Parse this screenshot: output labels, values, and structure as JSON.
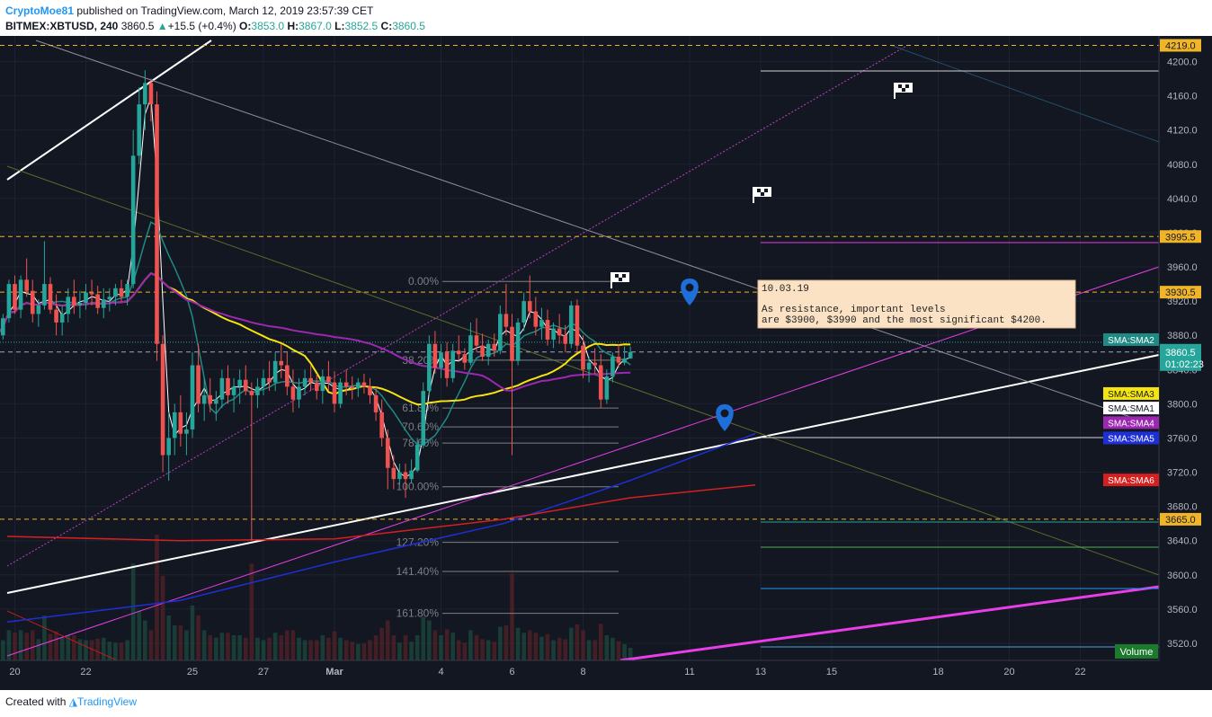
{
  "header": {
    "author": "CryptoMoe81",
    "published": "published on TradingView.com, March 12, 2019 23:57:39 CET",
    "symbol": "BITMEX:XBTUSD, 240",
    "last": "3860.5",
    "change": "+15.5 (+0.4%)",
    "o_label": "O:",
    "o": "3853.0",
    "h_label": "H:",
    "h": "3867.0",
    "l_label": "L:",
    "l": "3852.5",
    "c_label": "C:",
    "c": "3860.5"
  },
  "footer": {
    "created": "Created with",
    "brand": "TradingView"
  },
  "colors": {
    "background": "#131722",
    "up": "#26a69a",
    "down": "#ef5350",
    "level": "#f0b429",
    "sma1": "#ffffff",
    "sma2": "#1f8a84",
    "sma3": "#f5e50f",
    "sma4": "#9c27b0",
    "sma5": "#1e2fd6",
    "sma6": "#d61f1f",
    "pink": "#e83ee8"
  },
  "chart_data": {
    "type": "candlestick",
    "ylim": [
      3500,
      4230
    ],
    "y_ticks": [
      3520,
      3560,
      3600,
      3640,
      3680,
      3720,
      3760,
      3800,
      3840,
      3880,
      3920,
      3960,
      4000,
      4040,
      4080,
      4120,
      4160,
      4200
    ],
    "x_ticks": [
      "20",
      "22",
      "25",
      "27",
      "Mar",
      "4",
      "6",
      "8",
      "11",
      "13",
      "15",
      "18",
      "20",
      "22"
    ],
    "x_tick_days": [
      -9,
      -7,
      -4,
      -2,
      0,
      3,
      5,
      7,
      10,
      12,
      14,
      17,
      19,
      21
    ],
    "levels": [
      {
        "price": 4219.0,
        "label": "4219.0"
      },
      {
        "price": 3995.5,
        "label": "3995.5"
      },
      {
        "price": 3930.5,
        "label": "3930.5"
      },
      {
        "price": 3665.0,
        "label": "3665.0"
      }
    ],
    "last_price": {
      "price": 3860.5,
      "label": "3860.5",
      "countdown": "01:02:23"
    },
    "fib": [
      {
        "label": "0.00%",
        "price": 3943
      },
      {
        "label": "38.20%",
        "price": 3851
      },
      {
        "label": "61.80%",
        "price": 3795
      },
      {
        "label": "70.60%",
        "price": 3773
      },
      {
        "label": "78.60%",
        "price": 3754
      },
      {
        "label": "100.00%",
        "price": 3703
      },
      {
        "label": "127.20%",
        "price": 3638
      },
      {
        "label": "141.40%",
        "price": 3604
      },
      {
        "label": "161.80%",
        "price": 3555
      }
    ],
    "legend": [
      {
        "label": "SMA:SMA2",
        "price": 3875,
        "color": "#1f8a84"
      },
      {
        "label": "SMA:SMA3",
        "price": 3812,
        "color": "#f5e50f"
      },
      {
        "label": "SMA:SMA1",
        "price": 3795,
        "color": "#ffffff"
      },
      {
        "label": "SMA:SMA4",
        "price": 3778,
        "color": "#9c27b0"
      },
      {
        "label": "SMA:SMA5",
        "price": 3760,
        "color": "#1e2fd6"
      },
      {
        "label": "SMA:SMA6",
        "price": 3711,
        "color": "#d61f1f"
      }
    ],
    "volume_label": "Volume",
    "annotation": {
      "date": "10.03.19",
      "text1": "As resistance, important levels",
      "text2": "are $3900, $3990 and the most significant $4200."
    },
    "candles_4h": [
      [
        3920,
        3925,
        3870,
        3880
      ],
      [
        3880,
        3905,
        3875,
        3900
      ],
      [
        3900,
        3945,
        3895,
        3940
      ],
      [
        3940,
        3950,
        3905,
        3910
      ],
      [
        3910,
        3950,
        3900,
        3945
      ],
      [
        3945,
        3970,
        3925,
        3932
      ],
      [
        3932,
        3945,
        3895,
        3905
      ],
      [
        3905,
        3922,
        3890,
        3915
      ],
      [
        3915,
        3990,
        3910,
        3940
      ],
      [
        3940,
        3948,
        3905,
        3910
      ],
      [
        3910,
        3928,
        3880,
        3895
      ],
      [
        3895,
        3915,
        3880,
        3905
      ],
      [
        3905,
        3935,
        3895,
        3925
      ],
      [
        3925,
        3945,
        3905,
        3915
      ],
      [
        3915,
        3932,
        3900,
        3918
      ],
      [
        3918,
        3940,
        3910,
        3930
      ],
      [
        3930,
        3945,
        3915,
        3928
      ],
      [
        3928,
        3938,
        3905,
        3912
      ],
      [
        3912,
        3935,
        3900,
        3922
      ],
      [
        3922,
        3935,
        3908,
        3925
      ],
      [
        3925,
        3940,
        3915,
        3935
      ],
      [
        3935,
        3945,
        3920,
        3925
      ],
      [
        3925,
        3945,
        3915,
        3940
      ],
      [
        3940,
        4120,
        3935,
        4090
      ],
      [
        4090,
        4170,
        4080,
        4150
      ],
      [
        4150,
        4190,
        4120,
        4175
      ],
      [
        4175,
        4180,
        4130,
        4150
      ],
      [
        4150,
        4165,
        3850,
        3870
      ],
      [
        3870,
        3880,
        3720,
        3740
      ],
      [
        3740,
        3790,
        3710,
        3760
      ],
      [
        3760,
        3800,
        3740,
        3790
      ],
      [
        3790,
        3810,
        3750,
        3765
      ],
      [
        3765,
        3790,
        3740,
        3770
      ],
      [
        3770,
        3860,
        3760,
        3845
      ],
      [
        3845,
        3870,
        3790,
        3800
      ],
      [
        3800,
        3830,
        3780,
        3810
      ],
      [
        3810,
        3830,
        3790,
        3800
      ],
      [
        3800,
        3815,
        3780,
        3805
      ],
      [
        3805,
        3840,
        3795,
        3830
      ],
      [
        3830,
        3845,
        3800,
        3810
      ],
      [
        3810,
        3830,
        3790,
        3820
      ],
      [
        3820,
        3840,
        3800,
        3828
      ],
      [
        3828,
        3845,
        3810,
        3815
      ],
      [
        3815,
        3825,
        3640,
        3810
      ],
      [
        3810,
        3830,
        3795,
        3820
      ],
      [
        3820,
        3840,
        3810,
        3830
      ],
      [
        3830,
        3850,
        3815,
        3825
      ],
      [
        3825,
        3860,
        3815,
        3850
      ],
      [
        3850,
        3870,
        3830,
        3845
      ],
      [
        3845,
        3860,
        3810,
        3820
      ],
      [
        3820,
        3840,
        3790,
        3805
      ],
      [
        3805,
        3830,
        3795,
        3820
      ],
      [
        3820,
        3840,
        3810,
        3830
      ],
      [
        3830,
        3845,
        3815,
        3825
      ],
      [
        3825,
        3835,
        3805,
        3815
      ],
      [
        3815,
        3840,
        3800,
        3832
      ],
      [
        3832,
        3850,
        3815,
        3825
      ],
      [
        3825,
        3838,
        3790,
        3800
      ],
      [
        3800,
        3830,
        3795,
        3825
      ],
      [
        3825,
        3840,
        3810,
        3820
      ],
      [
        3820,
        3832,
        3805,
        3818
      ],
      [
        3818,
        3830,
        3808,
        3825
      ],
      [
        3825,
        3835,
        3812,
        3820
      ],
      [
        3820,
        3830,
        3800,
        3810
      ],
      [
        3810,
        3820,
        3780,
        3790
      ],
      [
        3790,
        3805,
        3750,
        3760
      ],
      [
        3760,
        3770,
        3700,
        3725
      ],
      [
        3725,
        3740,
        3700,
        3712
      ],
      [
        3712,
        3730,
        3705,
        3720
      ],
      [
        3720,
        3730,
        3690,
        3712
      ],
      [
        3712,
        3735,
        3708,
        3722
      ],
      [
        3722,
        3760,
        3720,
        3752
      ],
      [
        3752,
        3825,
        3748,
        3815
      ],
      [
        3815,
        3880,
        3810,
        3870
      ],
      [
        3870,
        3885,
        3835,
        3842
      ],
      [
        3842,
        3870,
        3830,
        3860
      ],
      [
        3860,
        3872,
        3820,
        3830
      ],
      [
        3830,
        3870,
        3825,
        3862
      ],
      [
        3862,
        3880,
        3850,
        3858
      ],
      [
        3858,
        3865,
        3840,
        3848
      ],
      [
        3848,
        3895,
        3845,
        3880
      ],
      [
        3880,
        3900,
        3860,
        3868
      ],
      [
        3868,
        3882,
        3850,
        3855
      ],
      [
        3855,
        3875,
        3845,
        3870
      ],
      [
        3870,
        3882,
        3855,
        3862
      ],
      [
        3862,
        3915,
        3858,
        3905
      ],
      [
        3905,
        3940,
        3880,
        3890
      ],
      [
        3890,
        3905,
        3740,
        3850
      ],
      [
        3850,
        3900,
        3845,
        3895
      ],
      [
        3895,
        3930,
        3885,
        3920
      ],
      [
        3920,
        3950,
        3900,
        3908
      ],
      [
        3908,
        3925,
        3880,
        3890
      ],
      [
        3890,
        3912,
        3875,
        3898
      ],
      [
        3898,
        3910,
        3868,
        3875
      ],
      [
        3875,
        3895,
        3865,
        3888
      ],
      [
        3888,
        3905,
        3870,
        3880
      ],
      [
        3880,
        3892,
        3860,
        3870
      ],
      [
        3870,
        3920,
        3865,
        3915
      ],
      [
        3915,
        3922,
        3860,
        3868
      ],
      [
        3868,
        3880,
        3830,
        3840
      ],
      [
        3840,
        3855,
        3825,
        3848
      ],
      [
        3848,
        3865,
        3835,
        3845
      ],
      [
        3845,
        3858,
        3795,
        3805
      ],
      [
        3805,
        3840,
        3800,
        3832
      ],
      [
        3832,
        3860,
        3825,
        3855
      ],
      [
        3855,
        3870,
        3842,
        3848
      ],
      [
        3848,
        3867,
        3845,
        3853
      ],
      [
        3853,
        3867,
        3852.5,
        3860.5
      ]
    ]
  }
}
